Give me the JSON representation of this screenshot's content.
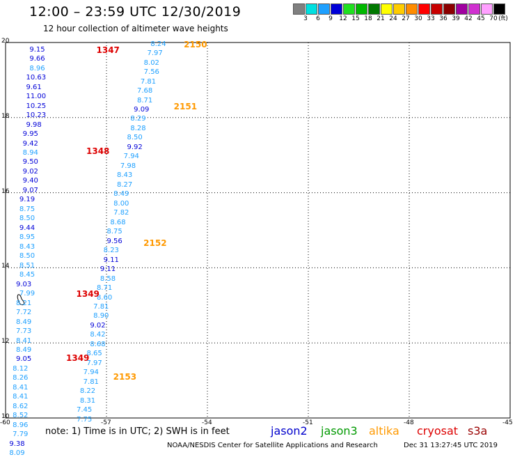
{
  "header": {
    "title": "12:00 – 23:59 UTC 12/30/2019",
    "subtitle": "12 hour collection of altimeter wave heights"
  },
  "legend": {
    "unit": "(ft)",
    "entries": [
      {
        "label": "3",
        "color": "#808080"
      },
      {
        "label": "6",
        "color": "#00e0e0"
      },
      {
        "label": "9",
        "color": "#1ea0ff"
      },
      {
        "label": "12",
        "color": "#0000d8"
      },
      {
        "label": "15",
        "color": "#20e020"
      },
      {
        "label": "18",
        "color": "#00b800"
      },
      {
        "label": "21",
        "color": "#007800"
      },
      {
        "label": "24",
        "color": "#ffff00"
      },
      {
        "label": "27",
        "color": "#ffcc00"
      },
      {
        "label": "30",
        "color": "#ff8c00"
      },
      {
        "label": "33",
        "color": "#ff0000"
      },
      {
        "label": "36",
        "color": "#c80000"
      },
      {
        "label": "39",
        "color": "#8b0000"
      },
      {
        "label": "42",
        "color": "#a000a0"
      },
      {
        "label": "45",
        "color": "#d030d0"
      },
      {
        "label": "70",
        "color": "#ffa0ff"
      },
      {
        "label": "",
        "color": "#000000"
      }
    ]
  },
  "map": {
    "lat_min": 10,
    "lat_max": 20,
    "lon_min": -60,
    "lon_max": -45,
    "lat_ticks": [
      "10",
      "12",
      "14",
      "16",
      "18",
      "20"
    ],
    "lon_ticks": [
      "-60",
      "-57",
      "-54",
      "-51",
      "-48",
      "-45"
    ],
    "lat_values": [
      10,
      12,
      14,
      16,
      18,
      20
    ],
    "lon_values": [
      -60,
      -57,
      -54,
      -51,
      -48,
      -45
    ]
  },
  "colors": {
    "jason2": "#0000cc",
    "jason3": "#009900",
    "altika": "#ff9900",
    "cryosat": "#dd0000",
    "s3a": "#990000",
    "light_reading": "#1ea0ff",
    "dark_reading": "#0000d8",
    "cryo_pass": "#dd0000",
    "altika_pass": "#ff9900"
  },
  "passes": [
    {
      "label": "1347",
      "lat": 19.8,
      "lon": -57.3,
      "color": "#dd0000"
    },
    {
      "label": "1348",
      "lat": 17.1,
      "lon": -57.6,
      "color": "#dd0000"
    },
    {
      "label": "1349",
      "lat": 13.3,
      "lon": -57.9,
      "color": "#dd0000"
    },
    {
      "label": "1349",
      "lat": 11.6,
      "lon": -58.2,
      "color": "#dd0000"
    },
    {
      "label": "2150",
      "lat": 19.95,
      "lon": -54.7,
      "color": "#ff9900"
    },
    {
      "label": "2151",
      "lat": 18.3,
      "lon": -55.0,
      "color": "#ff9900"
    },
    {
      "label": "2152",
      "lat": 14.65,
      "lon": -55.9,
      "color": "#ff9900"
    },
    {
      "label": "2153",
      "lat": 11.1,
      "lon": -56.8,
      "color": "#ff9900"
    }
  ],
  "track_a": [
    {
      "v": "9.15",
      "lat": 19.8,
      "lon": -59.0,
      "dark": true
    },
    {
      "v": "9.66",
      "lat": 19.55,
      "lon": -59.0,
      "dark": true
    },
    {
      "v": "8.96",
      "lat": 19.3,
      "lon": -59.0,
      "dark": false
    },
    {
      "v": "10.63",
      "lat": 19.05,
      "lon": -59.1,
      "dark": true
    },
    {
      "v": "9.61",
      "lat": 18.8,
      "lon": -59.1,
      "dark": true
    },
    {
      "v": "11.00",
      "lat": 18.55,
      "lon": -59.1,
      "dark": true
    },
    {
      "v": "10.25",
      "lat": 18.3,
      "lon": -59.1,
      "dark": true
    },
    {
      "v": "10.23",
      "lat": 18.05,
      "lon": -59.1,
      "dark": true
    },
    {
      "v": "9.98",
      "lat": 17.8,
      "lon": -59.1,
      "dark": true
    },
    {
      "v": "9.95",
      "lat": 17.55,
      "lon": -59.2,
      "dark": true
    },
    {
      "v": "9.42",
      "lat": 17.3,
      "lon": -59.2,
      "dark": true
    },
    {
      "v": "8.94",
      "lat": 17.05,
      "lon": -59.2,
      "dark": false
    },
    {
      "v": "9.50",
      "lat": 16.8,
      "lon": -59.2,
      "dark": true
    },
    {
      "v": "9.02",
      "lat": 16.55,
      "lon": -59.2,
      "dark": true
    },
    {
      "v": "9.40",
      "lat": 16.3,
      "lon": -59.2,
      "dark": true
    },
    {
      "v": "9.07",
      "lat": 16.05,
      "lon": -59.2,
      "dark": true
    },
    {
      "v": "9.19",
      "lat": 15.8,
      "lon": -59.3,
      "dark": true
    },
    {
      "v": "8.75",
      "lat": 15.55,
      "lon": -59.3,
      "dark": false
    },
    {
      "v": "8.50",
      "lat": 15.3,
      "lon": -59.3,
      "dark": false
    },
    {
      "v": "9.44",
      "lat": 15.05,
      "lon": -59.3,
      "dark": true
    },
    {
      "v": "8.95",
      "lat": 14.8,
      "lon": -59.3,
      "dark": false
    },
    {
      "v": "8.43",
      "lat": 14.55,
      "lon": -59.3,
      "dark": false
    },
    {
      "v": "8.50",
      "lat": 14.3,
      "lon": -59.3,
      "dark": false
    },
    {
      "v": "8.51",
      "lat": 14.05,
      "lon": -59.3,
      "dark": false
    },
    {
      "v": "8.45",
      "lat": 13.8,
      "lon": -59.3,
      "dark": false
    },
    {
      "v": "9.03",
      "lat": 13.55,
      "lon": -59.4,
      "dark": true
    },
    {
      "v": "7.99",
      "lat": 13.3,
      "lon": -59.3,
      "dark": false
    },
    {
      "v": "8.21",
      "lat": 13.05,
      "lon": -59.4,
      "dark": false
    },
    {
      "v": "7.72",
      "lat": 12.8,
      "lon": -59.4,
      "dark": false
    },
    {
      "v": "8.49",
      "lat": 12.55,
      "lon": -59.4,
      "dark": false
    },
    {
      "v": "7.73",
      "lat": 12.3,
      "lon": -59.4,
      "dark": false
    },
    {
      "v": "8.41",
      "lat": 12.05,
      "lon": -59.4,
      "dark": false
    },
    {
      "v": "8.49",
      "lat": 11.8,
      "lon": -59.4,
      "dark": false
    },
    {
      "v": "9.05",
      "lat": 11.55,
      "lon": -59.4,
      "dark": true
    },
    {
      "v": "8.12",
      "lat": 11.3,
      "lon": -59.5,
      "dark": false
    },
    {
      "v": "8.26",
      "lat": 11.05,
      "lon": -59.5,
      "dark": false
    },
    {
      "v": "8.41",
      "lat": 10.8,
      "lon": -59.5,
      "dark": false
    },
    {
      "v": "8.41",
      "lat": 10.55,
      "lon": -59.5,
      "dark": false
    },
    {
      "v": "8.62",
      "lat": 10.3,
      "lon": -59.5,
      "dark": false
    },
    {
      "v": "8.52",
      "lat": 10.05,
      "lon": -59.5,
      "dark": false
    },
    {
      "v": "8.96",
      "lat": 9.8,
      "lon": -59.5,
      "dark": false
    },
    {
      "v": "7.79",
      "lat": 9.55,
      "lon": -59.5,
      "dark": false
    },
    {
      "v": "9.38",
      "lat": 9.3,
      "lon": -59.6,
      "dark": true
    },
    {
      "v": "8.09",
      "lat": 9.05,
      "lon": -59.6,
      "dark": false
    }
  ],
  "track_b": [
    {
      "v": "8.24",
      "lat": 19.95,
      "lon": -55.4,
      "dark": false
    },
    {
      "v": "7.97",
      "lat": 19.7,
      "lon": -55.5,
      "dark": false
    },
    {
      "v": "8.02",
      "lat": 19.45,
      "lon": -55.6,
      "dark": false
    },
    {
      "v": "7.56",
      "lat": 19.2,
      "lon": -55.6,
      "dark": false
    },
    {
      "v": "7.81",
      "lat": 18.95,
      "lon": -55.7,
      "dark": false
    },
    {
      "v": "7.68",
      "lat": 18.7,
      "lon": -55.8,
      "dark": false
    },
    {
      "v": "8.71",
      "lat": 18.45,
      "lon": -55.8,
      "dark": false
    },
    {
      "v": "9.09",
      "lat": 18.2,
      "lon": -55.9,
      "dark": true
    },
    {
      "v": "8.29",
      "lat": 17.95,
      "lon": -56.0,
      "dark": false
    },
    {
      "v": "8.28",
      "lat": 17.7,
      "lon": -56.0,
      "dark": false
    },
    {
      "v": "8.50",
      "lat": 17.45,
      "lon": -56.1,
      "dark": false
    },
    {
      "v": "9.92",
      "lat": 17.2,
      "lon": -56.1,
      "dark": true
    },
    {
      "v": "7.94",
      "lat": 16.95,
      "lon": -56.2,
      "dark": false
    },
    {
      "v": "7.98",
      "lat": 16.7,
      "lon": -56.3,
      "dark": false
    },
    {
      "v": "8.43",
      "lat": 16.45,
      "lon": -56.4,
      "dark": false
    },
    {
      "v": "8.27",
      "lat": 16.2,
      "lon": -56.4,
      "dark": false
    },
    {
      "v": "8.49",
      "lat": 15.95,
      "lon": -56.5,
      "dark": false
    },
    {
      "v": "8.00",
      "lat": 15.7,
      "lon": -56.5,
      "dark": false
    },
    {
      "v": "7.82",
      "lat": 15.45,
      "lon": -56.5,
      "dark": false
    },
    {
      "v": "8.68",
      "lat": 15.2,
      "lon": -56.6,
      "dark": false
    },
    {
      "v": "8.75",
      "lat": 14.95,
      "lon": -56.7,
      "dark": false
    },
    {
      "v": "9.56",
      "lat": 14.7,
      "lon": -56.7,
      "dark": true
    },
    {
      "v": "8.23",
      "lat": 14.45,
      "lon": -56.8,
      "dark": false
    },
    {
      "v": "9.11",
      "lat": 14.2,
      "lon": -56.8,
      "dark": true
    },
    {
      "v": "9.11",
      "lat": 13.95,
      "lon": -56.9,
      "dark": true
    },
    {
      "v": "8.58",
      "lat": 13.7,
      "lon": -56.9,
      "dark": false
    },
    {
      "v": "8.71",
      "lat": 13.45,
      "lon": -57.0,
      "dark": false
    },
    {
      "v": "8.60",
      "lat": 13.2,
      "lon": -57.0,
      "dark": false
    },
    {
      "v": "7.81",
      "lat": 12.95,
      "lon": -57.1,
      "dark": false
    },
    {
      "v": "8.90",
      "lat": 12.7,
      "lon": -57.1,
      "dark": false
    },
    {
      "v": "9.02",
      "lat": 12.45,
      "lon": -57.2,
      "dark": true
    },
    {
      "v": "8.42",
      "lat": 12.2,
      "lon": -57.2,
      "dark": false
    },
    {
      "v": "8.68",
      "lat": 11.95,
      "lon": -57.2,
      "dark": false
    },
    {
      "v": "8.65",
      "lat": 11.7,
      "lon": -57.3,
      "dark": false
    },
    {
      "v": "7.97",
      "lat": 11.45,
      "lon": -57.3,
      "dark": false
    },
    {
      "v": "7.94",
      "lat": 11.2,
      "lon": -57.4,
      "dark": false
    },
    {
      "v": "7.81",
      "lat": 10.95,
      "lon": -57.4,
      "dark": false
    },
    {
      "v": "8.22",
      "lat": 10.7,
      "lon": -57.5,
      "dark": false
    },
    {
      "v": "8.31",
      "lat": 10.45,
      "lon": -57.5,
      "dark": false
    },
    {
      "v": "7.45",
      "lat": 10.2,
      "lon": -57.6,
      "dark": false
    },
    {
      "v": "7.75",
      "lat": 9.95,
      "lon": -57.6,
      "dark": false
    }
  ],
  "footer": {
    "note": "note:  1) Time is in UTC;  2) SWH is in feet",
    "credit": "NOAA/NESDIS Center for Satellite Applications and Research",
    "timestamp": "Dec 31 13:27:45 UTC 2019"
  },
  "satellites": [
    {
      "key": "jason2",
      "label": "jason2"
    },
    {
      "key": "jason3",
      "label": "jason3"
    },
    {
      "key": "altika",
      "label": "altika"
    },
    {
      "key": "cryosat",
      "label": "cryosat"
    },
    {
      "key": "s3a",
      "label": "s3a"
    }
  ]
}
